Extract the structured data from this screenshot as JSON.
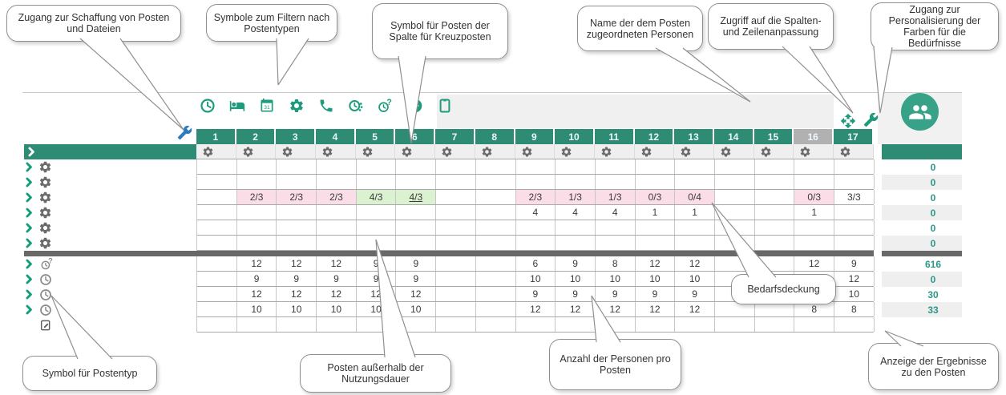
{
  "callouts": [
    {
      "id": "access-creation",
      "text": "Zugang zur Schaffung von Posten und Dateien"
    },
    {
      "id": "filter-icons",
      "text": "Symbole zum Filtern nach Postentypen"
    },
    {
      "id": "cross-post-column",
      "text": "Symbol für Posten der Spalte für Kreuzposten"
    },
    {
      "id": "assigned-persons",
      "text": "Name der dem Posten zugeordneten Personen"
    },
    {
      "id": "column-row-adjust",
      "text": "Zugriff auf die Spalten- und Zeilenanpassung"
    },
    {
      "id": "color-personalization",
      "text": "Zugang zur Personalisierung der Farben für die Bedürfnisse"
    },
    {
      "id": "demand-coverage",
      "text": "Bedarfsdeckung"
    },
    {
      "id": "post-type-icon",
      "text": "Symbol für Postentyp"
    },
    {
      "id": "outside-usage",
      "text": "Posten außerhalb der Nutzungsdauer"
    },
    {
      "id": "persons-per-post",
      "text": "Anzahl der Personen pro Posten"
    },
    {
      "id": "results-display",
      "text": "Anzeige der Ergebnisse zu den Posten"
    }
  ],
  "toolbar": {
    "filter_icons": [
      "clock",
      "bed",
      "calendar",
      "gear",
      "phone",
      "clock-dots",
      "clock-question",
      "minus-circle",
      "clipboard"
    ],
    "create_icon": "wrench",
    "adjust_icons": [
      "move",
      "wrench"
    ],
    "person_badge_icon": "people"
  },
  "planning_grid": {
    "column_headers": [
      "1",
      "2",
      "3",
      "4",
      "5",
      "6",
      "7",
      "8",
      "9",
      "10",
      "11",
      "12",
      "13",
      "14",
      "15",
      "16",
      "17"
    ],
    "inactive_column": "16",
    "column_gear_icon": "gear",
    "rows": [
      {
        "cells": []
      },
      {
        "cells": []
      },
      {
        "cells": [
          {
            "col": 2,
            "value": "2/3",
            "bg": "pink"
          },
          {
            "col": 3,
            "value": "2/3",
            "bg": "pink"
          },
          {
            "col": 4,
            "value": "2/3",
            "bg": "pink"
          },
          {
            "col": 5,
            "value": "4/3",
            "bg": "green"
          },
          {
            "col": 6,
            "value": "4/3",
            "bg": "green",
            "underline": true
          },
          {
            "col": 9,
            "value": "2/3",
            "bg": "pink"
          },
          {
            "col": 10,
            "value": "1/3",
            "bg": "pink"
          },
          {
            "col": 11,
            "value": "1/3",
            "bg": "pink"
          },
          {
            "col": 12,
            "value": "0/3",
            "bg": "pink"
          },
          {
            "col": 13,
            "value": "0/4",
            "bg": "pink"
          },
          {
            "col": 16,
            "value": "0/3",
            "bg": "pink"
          },
          {
            "col": 17,
            "value": "3/3"
          }
        ]
      },
      {
        "cells": [
          {
            "col": 9,
            "value": "4"
          },
          {
            "col": 10,
            "value": "4"
          },
          {
            "col": 11,
            "value": "4"
          },
          {
            "col": 12,
            "value": "1"
          },
          {
            "col": 13,
            "value": "1"
          },
          {
            "col": 16,
            "value": "1"
          }
        ]
      },
      {
        "cells": []
      },
      {
        "cells": []
      },
      {
        "cells": [
          {
            "col": 2,
            "value": "12"
          },
          {
            "col": 3,
            "value": "12"
          },
          {
            "col": 4,
            "value": "12"
          },
          {
            "col": 5,
            "value": "9"
          },
          {
            "col": 6,
            "value": "9"
          },
          {
            "col": 9,
            "value": "6"
          },
          {
            "col": 10,
            "value": "9"
          },
          {
            "col": 11,
            "value": "8"
          },
          {
            "col": 12,
            "value": "12"
          },
          {
            "col": 13,
            "value": "12"
          },
          {
            "col": 16,
            "value": "12"
          },
          {
            "col": 17,
            "value": "9"
          }
        ]
      },
      {
        "cells": [
          {
            "col": 2,
            "value": "9"
          },
          {
            "col": 3,
            "value": "9"
          },
          {
            "col": 4,
            "value": "9"
          },
          {
            "col": 5,
            "value": "9"
          },
          {
            "col": 6,
            "value": "9"
          },
          {
            "col": 9,
            "value": "10"
          },
          {
            "col": 10,
            "value": "10"
          },
          {
            "col": 11,
            "value": "10"
          },
          {
            "col": 12,
            "value": "10"
          },
          {
            "col": 13,
            "value": "10"
          },
          {
            "col": 17,
            "value": "12"
          }
        ]
      },
      {
        "cells": [
          {
            "col": 2,
            "value": "12"
          },
          {
            "col": 3,
            "value": "12"
          },
          {
            "col": 4,
            "value": "12"
          },
          {
            "col": 5,
            "value": "12"
          },
          {
            "col": 6,
            "value": "12"
          },
          {
            "col": 9,
            "value": "9"
          },
          {
            "col": 10,
            "value": "9"
          },
          {
            "col": 11,
            "value": "9"
          },
          {
            "col": 12,
            "value": "9"
          },
          {
            "col": 13,
            "value": "9"
          },
          {
            "col": 17,
            "value": "10"
          }
        ]
      },
      {
        "cells": [
          {
            "col": 2,
            "value": "10"
          },
          {
            "col": 3,
            "value": "10"
          },
          {
            "col": 4,
            "value": "10"
          },
          {
            "col": 5,
            "value": "10"
          },
          {
            "col": 6,
            "value": "10"
          },
          {
            "col": 9,
            "value": "12"
          },
          {
            "col": 10,
            "value": "12"
          },
          {
            "col": 11,
            "value": "12"
          },
          {
            "col": 12,
            "value": "12"
          },
          {
            "col": 13,
            "value": "12"
          },
          {
            "col": 16,
            "value": "8"
          },
          {
            "col": 17,
            "value": "8"
          }
        ]
      },
      {
        "cells": []
      }
    ]
  },
  "left_panel": {
    "header_icon": "chevron",
    "rows": [
      {
        "icons": [
          "chevron",
          "gear"
        ]
      },
      {
        "icons": [
          "chevron",
          "gear"
        ]
      },
      {
        "icons": [
          "chevron",
          "gear"
        ]
      },
      {
        "icons": [
          "chevron",
          "gear"
        ]
      },
      {
        "icons": [
          "chevron",
          "gear"
        ]
      },
      {
        "icons": [
          "chevron",
          "gear"
        ]
      },
      {
        "icons": [
          "chevron",
          "clock-question"
        ]
      },
      {
        "icons": [
          "chevron",
          "clock"
        ]
      },
      {
        "icons": [
          "chevron",
          "clock"
        ]
      },
      {
        "icons": [
          "chevron",
          "clock"
        ]
      },
      {
        "icons": [
          "notepad"
        ]
      }
    ]
  },
  "results_column": {
    "top_values": [
      "0",
      "0",
      "0",
      "0",
      "0",
      "0"
    ],
    "bottom_values": [
      "616",
      "0",
      "30",
      "33",
      ""
    ]
  },
  "colors": {
    "accent_teal": "#2e8b74",
    "icon_teal": "#1d9b7c",
    "person_badge": "#37a287",
    "results_number": "#2e9688",
    "pink_cell": "#fbdde7",
    "green_cell": "#daf2d0",
    "inactive_column": "#b1b1b1",
    "divider": "#686868",
    "wrench_blue": "#2a7cc0",
    "gear_gray": "#6b6b6b"
  }
}
